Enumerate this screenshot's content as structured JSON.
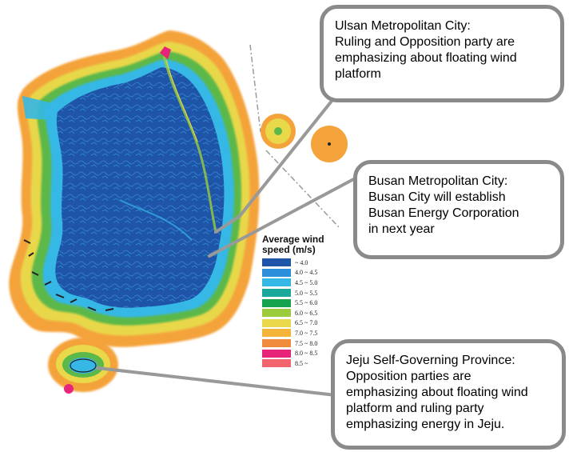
{
  "callouts": {
    "ulsan": {
      "lines": [
        "Ulsan Metropolitan City:",
        "Ruling and Opposition party are",
        "emphasizing about floating wind",
        "platform"
      ]
    },
    "busan": {
      "lines": [
        "Busan Metropolitan City:",
        "Busan City will establish",
        "Busan Energy Corporation",
        "in next year"
      ]
    },
    "jeju": {
      "lines": [
        "Jeju Self-Governing Province:",
        "Opposition parties are",
        "emphasizing about floating wind",
        "platform and ruling party",
        "emphasizing energy in Jeju."
      ]
    }
  },
  "legend": {
    "title_line1": "Average wind",
    "title_line2": "speed  (m/s)",
    "items": [
      {
        "range": "~ 4.0",
        "color": "#1f55a8"
      },
      {
        "range": "4.0 ~ 4.5",
        "color": "#2b8fdc"
      },
      {
        "range": "4.5 ~ 5.0",
        "color": "#35b8e6"
      },
      {
        "range": "5.0 ~ 5.5",
        "color": "#1aa89a"
      },
      {
        "range": "5.5 ~ 6.0",
        "color": "#17a34e"
      },
      {
        "range": "6.0 ~ 6.5",
        "color": "#9ccc3c"
      },
      {
        "range": "6.5 ~ 7.0",
        "color": "#e8d84a"
      },
      {
        "range": "7.0 ~ 7.5",
        "color": "#f4b43a"
      },
      {
        "range": "7.5 ~ 8.0",
        "color": "#f08a3c"
      },
      {
        "range": "8.0 ~ 8.5",
        "color": "#e8237a"
      },
      {
        "range": "8.5 ~",
        "color": "#f2646e"
      }
    ]
  },
  "colors": {
    "callout_border": "#8a8a8a",
    "leader_line": "#999999",
    "land_inland": "#1f55a8",
    "coast_orange": "#f4a33a"
  }
}
